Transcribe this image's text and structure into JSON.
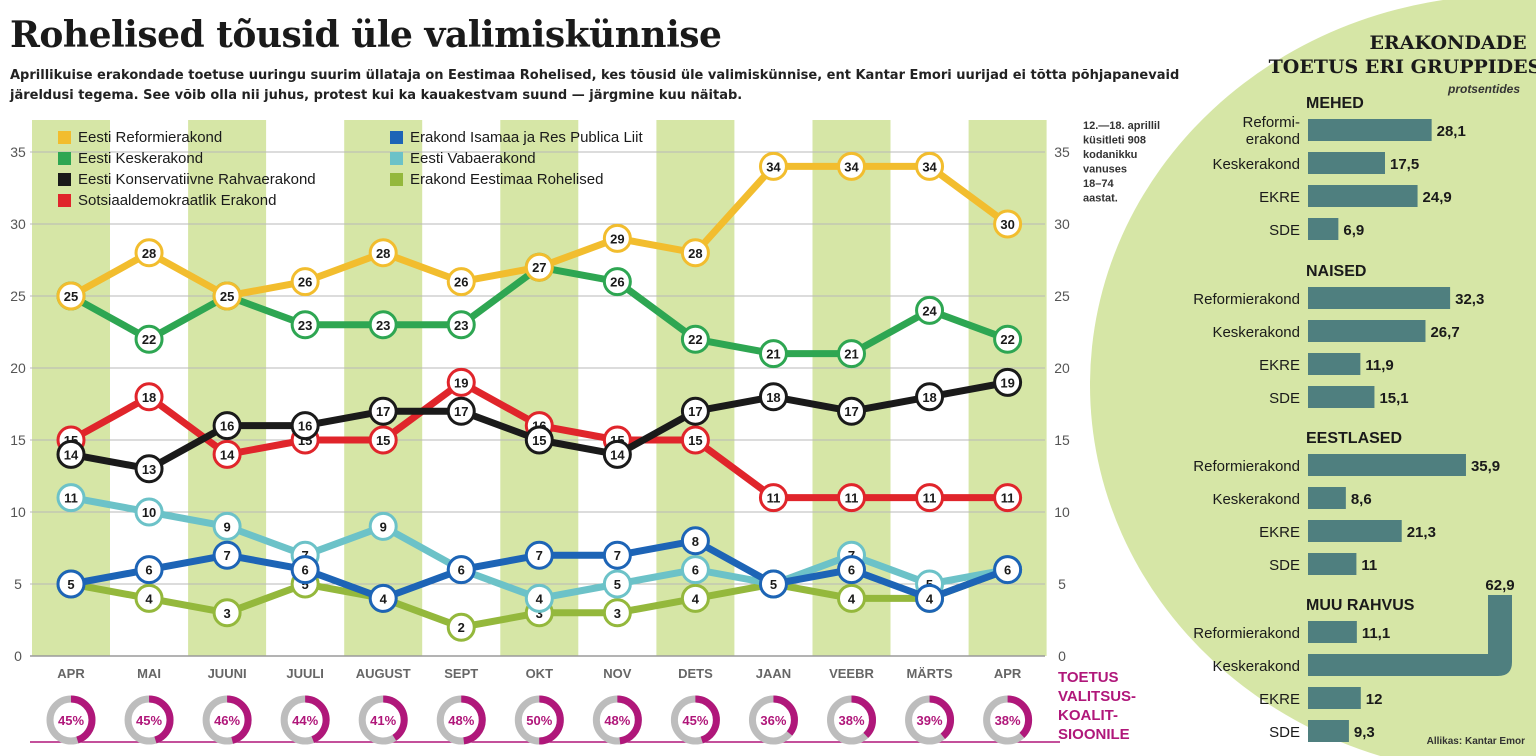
{
  "headline": "Rohelised tõusid üle valimiskünnise",
  "lede": "Aprillikuise erakondade toetuse uuringu suurim üllataja on Eestimaa Rohelised, kes tõusid üle valimiskünnise, ent Kantar Emori uurijad ei tõtta põhjapanevaid järeldusi tegema. See võib olla nii juhus, protest kui ka kauakestvam suund — järgmine kuu näitab.",
  "colors": {
    "band": "#d6e6a6",
    "reform": "#f2bd2e",
    "kesk": "#2ea652",
    "ekre": "#1a1a1a",
    "sde": "#e0252b",
    "isamaa": "#1d64b6",
    "vaba": "#6cc2c8",
    "rohelised": "#94b83c",
    "accent": "#b0177a",
    "panel": "#d6e6a6",
    "bar": "#4f7f7f"
  },
  "chart_data": [
    {
      "type": "line",
      "categories": [
        "APR",
        "MAI",
        "JUUNI",
        "JUULI",
        "AUGUST",
        "SEPT",
        "OKT",
        "NOV",
        "DETS",
        "JAAN",
        "VEEBR",
        "MÄRTS",
        "APR"
      ],
      "ylim": [
        0,
        35
      ],
      "yticks": [
        "0",
        "5",
        "10",
        "15",
        "20",
        "25",
        "30",
        "35"
      ],
      "grid": true,
      "legend_position": "top-left",
      "series": [
        {
          "name": "Eesti Reformierakond",
          "color_key": "reform",
          "values": [
            25,
            28,
            25,
            26,
            28,
            26,
            27,
            29,
            28,
            34,
            34,
            34,
            30
          ]
        },
        {
          "name": "Eesti Keskerakond",
          "color_key": "kesk",
          "values": [
            25,
            22,
            25,
            23,
            23,
            23,
            27,
            26,
            22,
            21,
            21,
            24,
            22
          ]
        },
        {
          "name": "Eesti Konservatiivne Rahvaerakond",
          "color_key": "ekre",
          "values": [
            14,
            13,
            16,
            16,
            17,
            17,
            15,
            14,
            17,
            18,
            17,
            18,
            19
          ]
        },
        {
          "name": "Sotsiaaldemokraatlik Erakond",
          "color_key": "sde",
          "values": [
            15,
            18,
            14,
            15,
            15,
            19,
            16,
            15,
            15,
            11,
            11,
            11,
            11
          ]
        },
        {
          "name": "Erakond Isamaa ja Res Publica Liit",
          "color_key": "isamaa",
          "values": [
            5,
            6,
            7,
            6,
            4,
            6,
            7,
            7,
            8,
            5,
            6,
            4,
            6
          ]
        },
        {
          "name": "Eesti Vabaerakond",
          "color_key": "vaba",
          "values": [
            11,
            10,
            9,
            7,
            9,
            6,
            4,
            5,
            6,
            5,
            7,
            5,
            6
          ]
        },
        {
          "name": "Erakond Eestimaa Rohelised",
          "color_key": "rohelised",
          "values": [
            5,
            4,
            3,
            5,
            4,
            2,
            3,
            3,
            4,
            5,
            4,
            4,
            6
          ]
        }
      ]
    },
    {
      "type": "donut",
      "title": "TOETUS VALITSUS-KOALIT-SIOONILE",
      "categories": [
        "APR",
        "MAI",
        "JUUNI",
        "JUULI",
        "AUGUST",
        "SEPT",
        "OKT",
        "NOV",
        "DETS",
        "JAAN",
        "VEEBR",
        "MÄRTS",
        "APR"
      ],
      "values": [
        45,
        45,
        46,
        44,
        41,
        48,
        50,
        48,
        45,
        36,
        38,
        39,
        38
      ],
      "labels": [
        "45%",
        "45%",
        "46%",
        "44%",
        "41%",
        "48%",
        "50%",
        "48%",
        "45%",
        "36%",
        "38%",
        "39%",
        "38%"
      ]
    },
    {
      "type": "bar",
      "title": "ERAKONDADE TOETUS ERI GRUPPIDES",
      "subtitle": "protsentides",
      "groups": [
        {
          "name": "MEHED",
          "bars": [
            {
              "label": "Reformi-erakond",
              "value": 28.1,
              "value_label": "28,1"
            },
            {
              "label": "Keskerakond",
              "value": 17.5,
              "value_label": "17,5"
            },
            {
              "label": "EKRE",
              "value": 24.9,
              "value_label": "24,9"
            },
            {
              "label": "SDE",
              "value": 6.9,
              "value_label": "6,9"
            }
          ]
        },
        {
          "name": "NAISED",
          "bars": [
            {
              "label": "Reformierakond",
              "value": 32.3,
              "value_label": "32,3"
            },
            {
              "label": "Keskerakond",
              "value": 26.7,
              "value_label": "26,7"
            },
            {
              "label": "EKRE",
              "value": 11.9,
              "value_label": "11,9"
            },
            {
              "label": "SDE",
              "value": 15.1,
              "value_label": "15,1"
            }
          ]
        },
        {
          "name": "EESTLASED",
          "bars": [
            {
              "label": "Reformierakond",
              "value": 35.9,
              "value_label": "35,9"
            },
            {
              "label": "Keskerakond",
              "value": 8.6,
              "value_label": "8,6"
            },
            {
              "label": "EKRE",
              "value": 21.3,
              "value_label": "21,3"
            },
            {
              "label": "SDE",
              "value": 11,
              "value_label": "11"
            }
          ]
        },
        {
          "name": "MUU RAHVUS",
          "bars": [
            {
              "label": "Reformierakond",
              "value": 11.1,
              "value_label": "11,1"
            },
            {
              "label": "Keskerakond",
              "value": 62.9,
              "value_label": "62,9"
            },
            {
              "label": "EKRE",
              "value": 12,
              "value_label": "12"
            },
            {
              "label": "SDE",
              "value": 9.3,
              "value_label": "9,3"
            }
          ]
        }
      ]
    }
  ],
  "survey_note": [
    "12.—18. aprillil",
    "küsitleti 908",
    "kodanikku",
    "vanuses",
    "18–74",
    "aastat."
  ],
  "source": "Allikas: Kantar Emor"
}
